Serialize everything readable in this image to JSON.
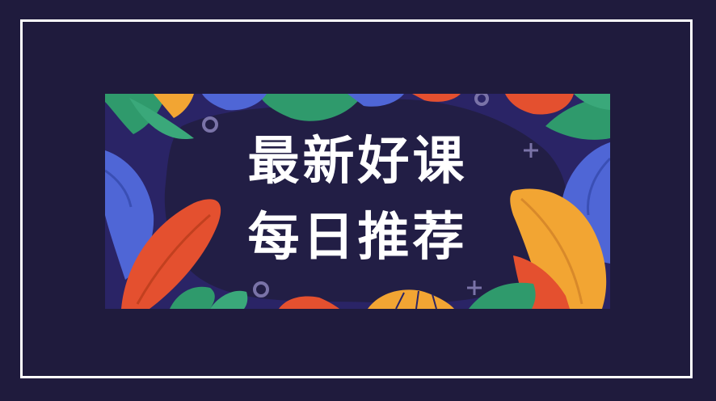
{
  "banner": {
    "line1": "最新好课",
    "line2": "每日推荐"
  },
  "colors": {
    "page_background": "#1f1b3d",
    "frame_border": "#ffffff",
    "banner_background": "#2a2466",
    "center_panel": "#221e45",
    "leaf_red": "#e4502f",
    "leaf_orange": "#f2a533",
    "leaf_blue": "#4f66d6",
    "leaf_green": "#2f9a6c",
    "text": "#ffffff"
  },
  "icons": [
    "leaf-decoration",
    "ring-decoration",
    "plus-decoration",
    "fan-leaf-decoration"
  ]
}
